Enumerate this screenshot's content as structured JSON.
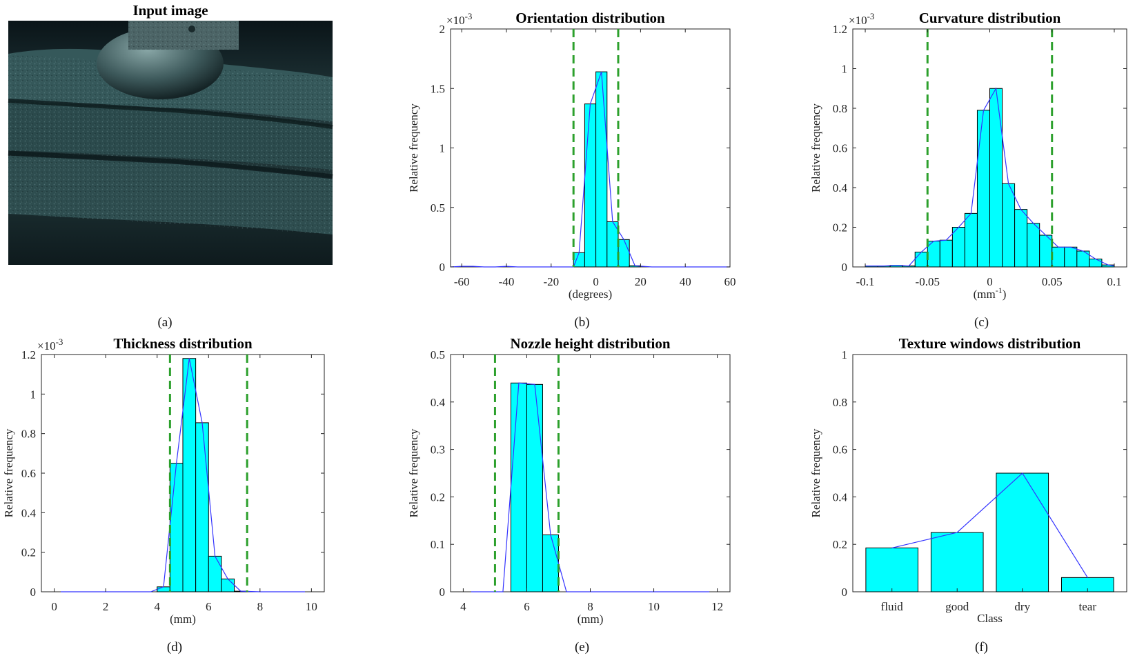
{
  "input_panel": {
    "title": "Input image",
    "caption": "(a)"
  },
  "colors": {
    "bar": "#00ffff",
    "line": "#3333ff",
    "threshold": "#2ca02c",
    "axis": "#222222"
  },
  "chart_data": [
    {
      "id": "orientation",
      "type": "bar",
      "title": "Orientation distribution",
      "xlabel": "(degrees)",
      "xlabel_sup": "",
      "ylabel": "Relative frequency",
      "exponent": "-3",
      "caption": "(b)",
      "xlim": [
        -65,
        60
      ],
      "ylim": [
        0,
        2
      ],
      "xticks": [
        -60,
        -40,
        -20,
        0,
        20,
        40,
        60
      ],
      "xtick_labels": [
        "-60",
        "-40",
        "-20",
        "0",
        "20",
        "40",
        "60"
      ],
      "yticks": [
        0,
        0.5,
        1,
        1.5,
        2
      ],
      "ytick_labels": [
        "0",
        "0.5",
        "1",
        "1.5",
        "2"
      ],
      "bin_width": 5,
      "bins": [
        [
          -7.5,
          0.12
        ],
        [
          -2.5,
          1.37
        ],
        [
          2.5,
          1.64
        ],
        [
          7.5,
          0.38
        ],
        [
          12.5,
          0.23
        ],
        [
          17.5,
          0.01
        ]
      ],
      "curve": [
        [
          -65,
          0.0
        ],
        [
          -60,
          0.005
        ],
        [
          -55,
          0.005
        ],
        [
          -50,
          0.0
        ],
        [
          -45,
          0.0
        ],
        [
          -40,
          0.005
        ],
        [
          -35,
          0.0
        ],
        [
          -30,
          0.0
        ],
        [
          -25,
          0.0
        ],
        [
          -20,
          0.0
        ],
        [
          -15,
          0.0
        ],
        [
          -10,
          0.0
        ],
        [
          -7.5,
          0.12
        ],
        [
          -2.5,
          1.37
        ],
        [
          2.5,
          1.64
        ],
        [
          7.5,
          0.38
        ],
        [
          12.5,
          0.23
        ],
        [
          17.5,
          0.01
        ],
        [
          25,
          0.0
        ],
        [
          40,
          0.0
        ],
        [
          60,
          0.0
        ]
      ],
      "thresholds": [
        -10,
        10
      ]
    },
    {
      "id": "curvature",
      "type": "bar",
      "title": "Curvature distribution",
      "xlabel": "(mm",
      "xlabel_sup": "-1",
      "ylabel": "Relative frequency",
      "exponent": "-3",
      "caption": "(c)",
      "xlim": [
        -0.11,
        0.11
      ],
      "ylim": [
        0,
        1.2
      ],
      "xticks": [
        -0.1,
        -0.05,
        0,
        0.05,
        0.1
      ],
      "xtick_labels": [
        "-0.1",
        "-0.05",
        "0",
        "0.05",
        "0.1"
      ],
      "yticks": [
        0,
        0.2,
        0.4,
        0.6,
        0.8,
        1,
        1.2
      ],
      "ytick_labels": [
        "0",
        "0.2",
        "0.4",
        "0.6",
        "0.8",
        "1",
        "1.2"
      ],
      "bin_width": 0.01,
      "bins": [
        [
          -0.095,
          0.005
        ],
        [
          -0.085,
          0.005
        ],
        [
          -0.075,
          0.008
        ],
        [
          -0.065,
          0.005
        ],
        [
          -0.055,
          0.075
        ],
        [
          -0.045,
          0.13
        ],
        [
          -0.035,
          0.135
        ],
        [
          -0.025,
          0.2
        ],
        [
          -0.015,
          0.27
        ],
        [
          -0.005,
          0.79
        ],
        [
          0.005,
          0.9
        ],
        [
          0.015,
          0.42
        ],
        [
          0.025,
          0.29
        ],
        [
          0.035,
          0.22
        ],
        [
          0.045,
          0.16
        ],
        [
          0.055,
          0.1
        ],
        [
          0.065,
          0.1
        ],
        [
          0.075,
          0.08
        ],
        [
          0.085,
          0.04
        ],
        [
          0.095,
          0.01
        ]
      ],
      "curve": [
        [
          -0.1,
          0.005
        ],
        [
          -0.095,
          0.005
        ],
        [
          -0.085,
          0.005
        ],
        [
          -0.075,
          0.008
        ],
        [
          -0.065,
          0.005
        ],
        [
          -0.055,
          0.075
        ],
        [
          -0.045,
          0.13
        ],
        [
          -0.035,
          0.135
        ],
        [
          -0.025,
          0.2
        ],
        [
          -0.015,
          0.27
        ],
        [
          -0.005,
          0.79
        ],
        [
          0.005,
          0.9
        ],
        [
          0.015,
          0.42
        ],
        [
          0.025,
          0.29
        ],
        [
          0.035,
          0.22
        ],
        [
          0.045,
          0.16
        ],
        [
          0.055,
          0.1
        ],
        [
          0.065,
          0.1
        ],
        [
          0.075,
          0.08
        ],
        [
          0.085,
          0.04
        ],
        [
          0.095,
          0.01
        ],
        [
          0.1,
          0.005
        ]
      ],
      "thresholds": [
        -0.05,
        0.05
      ]
    },
    {
      "id": "thickness",
      "type": "bar",
      "title": "Thickness distribution",
      "xlabel": "(mm)",
      "xlabel_sup": "",
      "ylabel": "Relative frequency",
      "exponent": "-3",
      "caption": "(d)",
      "xlim": [
        -0.5,
        10.5
      ],
      "ylim": [
        0,
        1.2
      ],
      "xticks": [
        0,
        2,
        4,
        6,
        8,
        10
      ],
      "xtick_labels": [
        "0",
        "2",
        "4",
        "6",
        "8",
        "10"
      ],
      "yticks": [
        0,
        0.2,
        0.4,
        0.6,
        0.8,
        1,
        1.2
      ],
      "ytick_labels": [
        "0",
        "0.2",
        "0.4",
        "0.6",
        "0.8",
        "1",
        "1.2"
      ],
      "bin_width": 0.5,
      "bins": [
        [
          4.25,
          0.025
        ],
        [
          4.75,
          0.65
        ],
        [
          5.25,
          1.18
        ],
        [
          5.75,
          0.855
        ],
        [
          6.25,
          0.18
        ],
        [
          6.75,
          0.065
        ],
        [
          7.25,
          0.003
        ]
      ],
      "curve": [
        [
          0.25,
          0.0
        ],
        [
          1.0,
          0.0
        ],
        [
          2.0,
          0.0
        ],
        [
          3.0,
          0.0
        ],
        [
          3.75,
          0.0
        ],
        [
          4.25,
          0.025
        ],
        [
          4.75,
          0.65
        ],
        [
          5.25,
          1.18
        ],
        [
          5.75,
          0.855
        ],
        [
          6.25,
          0.18
        ],
        [
          6.75,
          0.065
        ],
        [
          7.25,
          0.003
        ],
        [
          8.0,
          0.0
        ],
        [
          9.0,
          0.0
        ],
        [
          9.75,
          0.0
        ]
      ],
      "thresholds": [
        4.5,
        7.5
      ]
    },
    {
      "id": "nozzle",
      "type": "bar",
      "title": "Nozzle height distribution",
      "xlabel": "(mm)",
      "xlabel_sup": "",
      "ylabel": "Relative frequency",
      "exponent": "",
      "caption": "(e)",
      "xlim": [
        3.6,
        12.4
      ],
      "ylim": [
        0,
        0.5
      ],
      "xticks": [
        4,
        6,
        8,
        10,
        12
      ],
      "xtick_labels": [
        "4",
        "6",
        "8",
        "10",
        "12"
      ],
      "yticks": [
        0,
        0.1,
        0.2,
        0.3,
        0.4,
        0.5
      ],
      "ytick_labels": [
        "0",
        "0.1",
        "0.2",
        "0.3",
        "0.4",
        "0.5"
      ],
      "bin_width": 0.5,
      "bins": [
        [
          5.75,
          0.44
        ],
        [
          6.25,
          0.437
        ],
        [
          6.75,
          0.12
        ]
      ],
      "curve": [
        [
          4.25,
          0.0
        ],
        [
          5.25,
          0.0
        ],
        [
          5.75,
          0.44
        ],
        [
          6.25,
          0.437
        ],
        [
          6.75,
          0.12
        ],
        [
          7.25,
          0.0
        ],
        [
          8.0,
          0.0
        ],
        [
          10.0,
          0.0
        ],
        [
          11.75,
          0.0
        ]
      ],
      "thresholds": [
        5,
        7
      ]
    },
    {
      "id": "texture",
      "type": "bar",
      "title": "Texture windows distribution",
      "xlabel": "Class",
      "xlabel_sup": "",
      "ylabel": "Relative frequency",
      "exponent": "",
      "caption": "(f)",
      "categories": [
        "fluid",
        "good",
        "dry",
        "tear"
      ],
      "values": [
        0.185,
        0.25,
        0.5,
        0.06
      ],
      "ylim": [
        0,
        1
      ],
      "yticks": [
        0,
        0.2,
        0.4,
        0.6,
        0.8,
        1
      ],
      "ytick_labels": [
        "0",
        "0.2",
        "0.4",
        "0.6",
        "0.8",
        "1"
      ],
      "thresholds": []
    }
  ]
}
